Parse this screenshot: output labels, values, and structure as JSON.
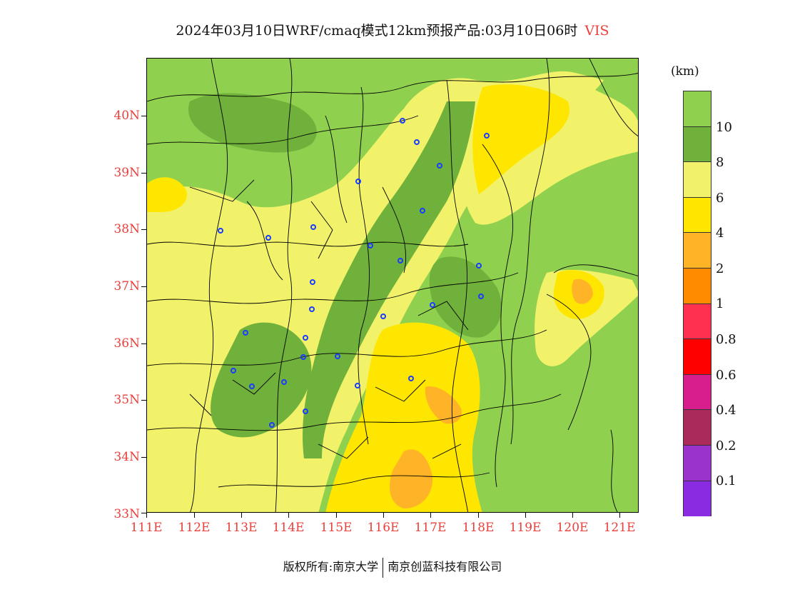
{
  "title": {
    "text": "2024年03月10日WRF/cmaq模式12km预报产品:03月10日06时",
    "variable": "VIS"
  },
  "map": {
    "lat_ticks": [
      "40N",
      "39N",
      "38N",
      "37N",
      "36N",
      "35N",
      "34N",
      "33N"
    ],
    "lon_ticks": [
      "111E",
      "112E",
      "113E",
      "114E",
      "115E",
      "116E",
      "117E",
      "118E",
      "119E",
      "120E",
      "121E"
    ],
    "extent": {
      "lon_min": 111,
      "lon_max": 121.4,
      "lat_min": 33,
      "lat_max": 40.98
    },
    "colors": {
      "gt10": "#8fd14f",
      "8_10": "#6fb13a",
      "6_8": "#f2f26a",
      "4_6": "#ffe600",
      "2_4": "#ffb428",
      "1_2": "#ff8c00",
      "boundary": "#000000",
      "station": "#1a3cff"
    }
  },
  "legend": {
    "unit": "(km)",
    "colors": [
      "#8fd14f",
      "#6fb13a",
      "#f2f26a",
      "#ffe600",
      "#ffb428",
      "#ff8c00",
      "#ff3050",
      "#ff0000",
      "#d81e8c",
      "#aa2b5b",
      "#9933cc",
      "#8a2be2"
    ],
    "labels": [
      "10",
      "8",
      "6",
      "4",
      "2",
      "1",
      "0.8",
      "0.6",
      "0.4",
      "0.2",
      "0.1"
    ]
  },
  "footer": {
    "left": "版权所有:南京大学",
    "right": "南京创蓝科技有限公司"
  }
}
